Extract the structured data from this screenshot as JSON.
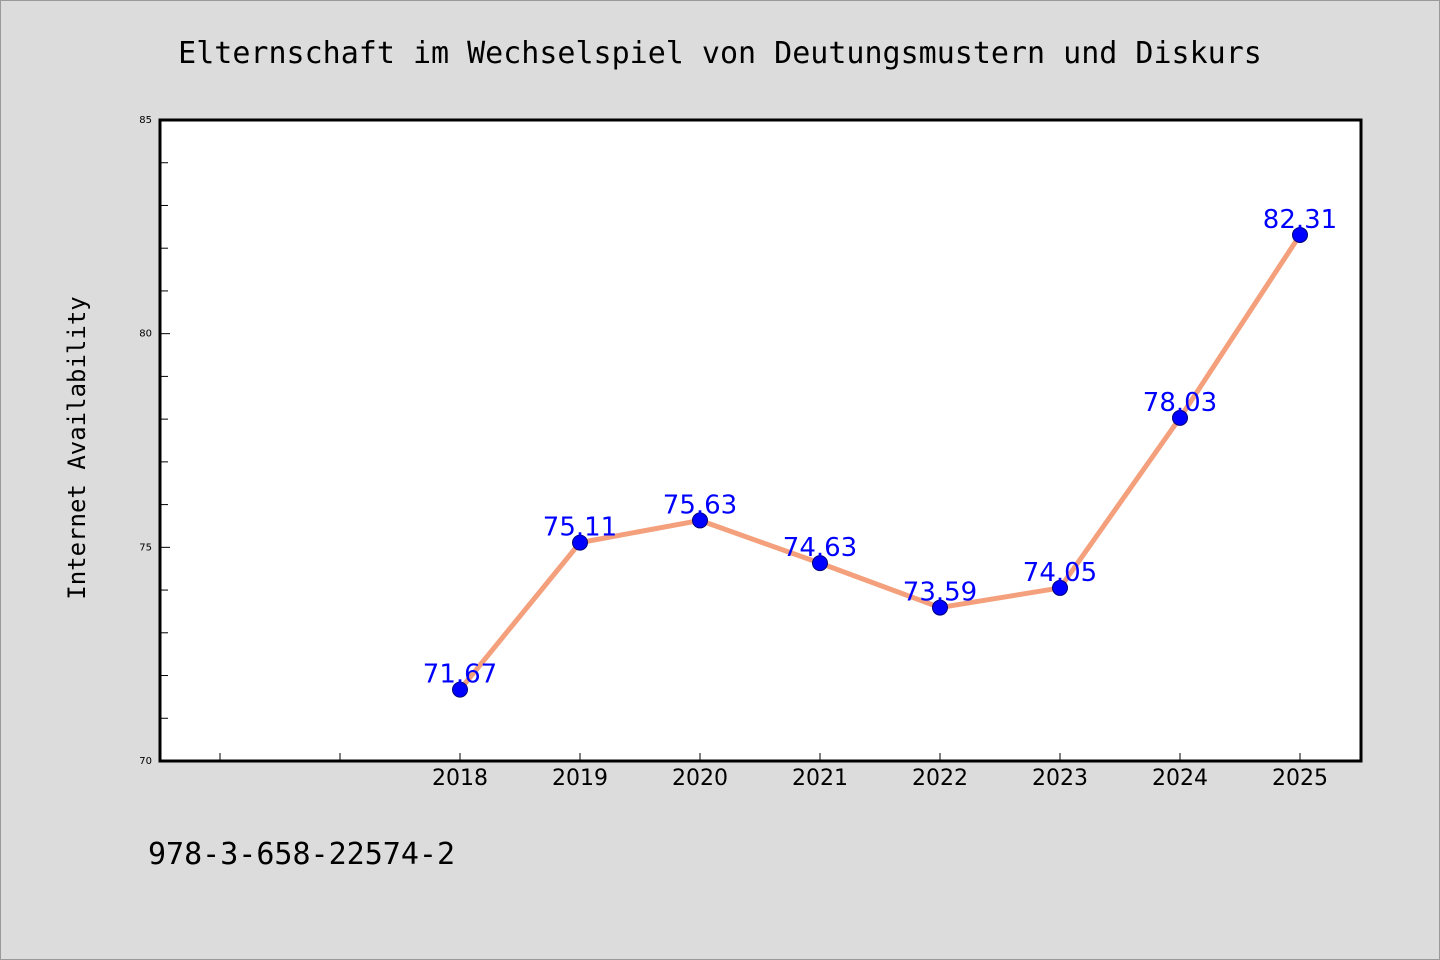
{
  "chart_data": {
    "type": "line",
    "title": "Elternschaft im Wechselspiel von Deutungsmustern und Diskurs",
    "xlabel": "",
    "ylabel": "Internet Availability",
    "categories": [
      "2018",
      "2019",
      "2020",
      "2021",
      "2022",
      "2023",
      "2024",
      "2025"
    ],
    "values": [
      71.67,
      75.11,
      75.63,
      74.63,
      73.59,
      74.05,
      78.03,
      82.31
    ],
    "data_labels": [
      "71.67",
      "75.11",
      "75.63",
      "74.63",
      "73.59",
      "74.05",
      "78.03",
      "82.31"
    ],
    "ylim": [
      70,
      85
    ],
    "yticks": [
      "70",
      "75",
      "80",
      "85"
    ],
    "grid": false,
    "line_color": "#f4a07c",
    "marker_color": "#0000ff",
    "label_color": "#0000ff"
  },
  "footer": {
    "isbn": "978-3-658-22574-2"
  }
}
